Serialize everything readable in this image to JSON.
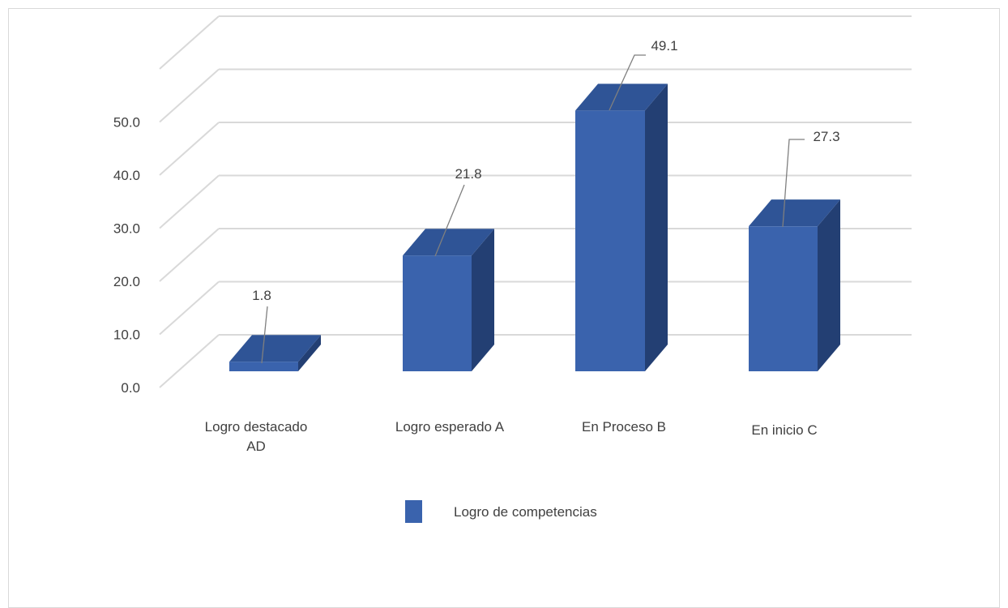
{
  "chart_data": {
    "type": "bar",
    "style": "3d-column",
    "categories": [
      [
        "Logro destacado",
        "AD"
      ],
      [
        "Logro esperado A"
      ],
      [
        "En Proceso  B"
      ],
      [
        "En inicio  C"
      ]
    ],
    "series": [
      {
        "name": "Logro de competencias",
        "values": [
          1.8,
          21.8,
          49.1,
          27.3
        ]
      }
    ],
    "data_labels": [
      "1.8",
      "21.8",
      "49.1",
      "27.3"
    ],
    "y_ticks": [
      "0.0",
      "10.0",
      "20.0",
      "30.0",
      "40.0",
      "50.0"
    ],
    "ylim": [
      0,
      60
    ],
    "grid": true,
    "legend_position": "bottom",
    "colors": {
      "front": "#3a63ad",
      "top": "#2f5496",
      "side": "#233f73",
      "grid": "#d9d9d9",
      "leader": "#7f7f7f"
    }
  }
}
